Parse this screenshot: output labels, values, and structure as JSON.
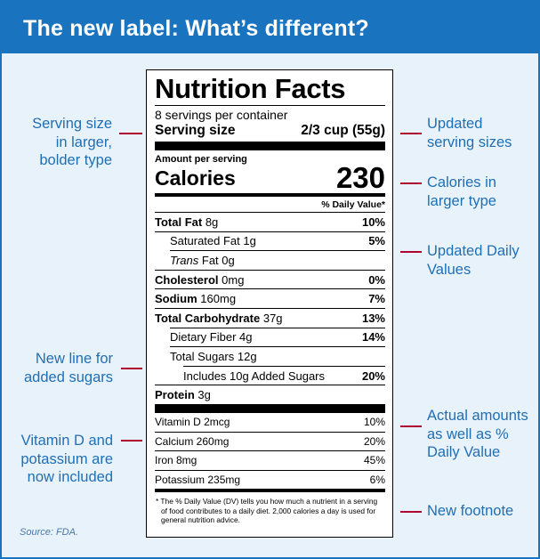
{
  "header": {
    "title": "The new label: What’s different?"
  },
  "callouts": {
    "serving_size": [
      "Serving size",
      "in larger,",
      "bolder type"
    ],
    "added_sugars": [
      "New line for",
      "added sugars"
    ],
    "vitamin_d": [
      "Vitamin D and",
      "potassium are",
      "now included"
    ],
    "updated_servings": [
      "Updated",
      "serving sizes"
    ],
    "calories": [
      "Calories in",
      "larger type"
    ],
    "daily_values": [
      "Updated Daily",
      "Values"
    ],
    "actual_amounts": [
      "Actual amounts",
      "as well as %",
      "Daily Value"
    ],
    "footnote": [
      "New footnote"
    ]
  },
  "source": "Source: FDA.",
  "label": {
    "title": "Nutrition Facts",
    "servings": "8 servings per container",
    "serving_size_label": "Serving size",
    "serving_size_value": "2/3 cup (55g)",
    "amount_per_serving": "Amount per serving",
    "calories_label": "Calories",
    "calories_value": "230",
    "dv_header": "% Daily Value*",
    "nutrients": [
      {
        "name": "Total Fat",
        "amount": "8g",
        "pct": "10%"
      },
      {
        "name": "Saturated Fat",
        "amount": "1g",
        "pct": "5%"
      },
      {
        "name": "Trans",
        "amount": "Fat 0g",
        "pct": ""
      },
      {
        "name": "Cholesterol",
        "amount": "0mg",
        "pct": "0%"
      },
      {
        "name": "Sodium",
        "amount": "160mg",
        "pct": "7%"
      },
      {
        "name": "Total Carbohydrate",
        "amount": "37g",
        "pct": "13%"
      },
      {
        "name": "Dietary Fiber",
        "amount": "4g",
        "pct": "14%"
      },
      {
        "name": "Total Sugars",
        "amount": "12g",
        "pct": ""
      },
      {
        "name": "Includes 10g Added Sugars",
        "amount": "",
        "pct": "20%"
      },
      {
        "name": "Protein",
        "amount": "3g",
        "pct": ""
      }
    ],
    "vitamins": [
      {
        "name": "Vitamin D 2mcg",
        "pct": "10%"
      },
      {
        "name": "Calcium 260mg",
        "pct": "20%"
      },
      {
        "name": "Iron 8mg",
        "pct": "45%"
      },
      {
        "name": "Potassium 235mg",
        "pct": "6%"
      }
    ],
    "footnote": "* The % Daily Value (DV) tells you how much a nutrient in a serving of food contributes to a daily diet. 2,000 calories a day is used for general nutrition advice."
  },
  "colors": {
    "header_blue": "#1a73be",
    "callout_text": "#1f6fb5",
    "connector": "#b00030",
    "panel_bg": "#e8f2fa"
  }
}
